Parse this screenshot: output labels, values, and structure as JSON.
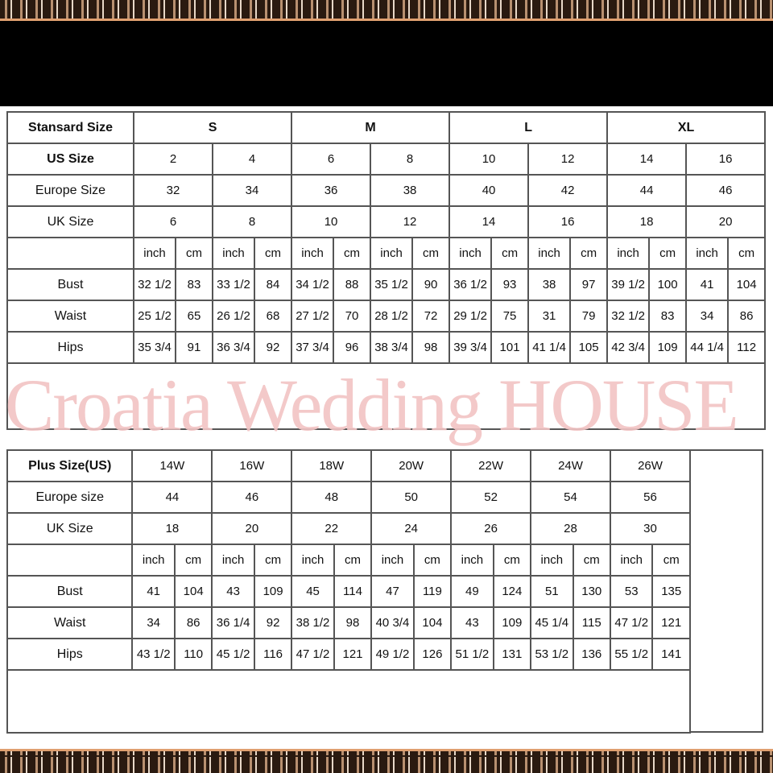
{
  "standard": {
    "header_label": "Stansard Size",
    "groups": [
      "S",
      "M",
      "L",
      "XL"
    ],
    "us_label": "US Size",
    "us": [
      "2",
      "4",
      "6",
      "8",
      "10",
      "12",
      "14",
      "16"
    ],
    "europe_label": "Europe Size",
    "europe": [
      "32",
      "34",
      "36",
      "38",
      "40",
      "42",
      "44",
      "46"
    ],
    "uk_label": "UK Size",
    "uk": [
      "6",
      "8",
      "10",
      "12",
      "14",
      "16",
      "18",
      "20"
    ],
    "unit_inch": "inch",
    "unit_cm": "cm",
    "measurements": [
      {
        "label": "Bust",
        "values": [
          "32 1/2",
          "83",
          "33 1/2",
          "84",
          "34 1/2",
          "88",
          "35 1/2",
          "90",
          "36 1/2",
          "93",
          "38",
          "97",
          "39 1/2",
          "100",
          "41",
          "104"
        ]
      },
      {
        "label": "Waist",
        "values": [
          "25 1/2",
          "65",
          "26 1/2",
          "68",
          "27 1/2",
          "70",
          "28 1/2",
          "72",
          "29 1/2",
          "75",
          "31",
          "79",
          "32 1/2",
          "83",
          "34",
          "86"
        ]
      },
      {
        "label": "Hips",
        "values": [
          "35 3/4",
          "91",
          "36 3/4",
          "92",
          "37 3/4",
          "96",
          "38 3/4",
          "98",
          "39 3/4",
          "101",
          "41 1/4",
          "105",
          "42 3/4",
          "109",
          "44 1/4",
          "112"
        ]
      }
    ]
  },
  "plus": {
    "header_label": "Plus Size(US)",
    "sizes": [
      "14W",
      "16W",
      "18W",
      "20W",
      "22W",
      "24W",
      "26W"
    ],
    "europe_label": "Europe size",
    "europe": [
      "44",
      "46",
      "48",
      "50",
      "52",
      "54",
      "56"
    ],
    "uk_label": "UK Size",
    "uk": [
      "18",
      "20",
      "22",
      "24",
      "26",
      "28",
      "30"
    ],
    "unit_inch": "inch",
    "unit_cm": "cm",
    "measurements": [
      {
        "label": "Bust",
        "values": [
          "41",
          "104",
          "43",
          "109",
          "45",
          "114",
          "47",
          "119",
          "49",
          "124",
          "51",
          "130",
          "53",
          "135"
        ]
      },
      {
        "label": "Waist",
        "values": [
          "34",
          "86",
          "36 1/4",
          "92",
          "38 1/2",
          "98",
          "40 3/4",
          "104",
          "43",
          "109",
          "45 1/4",
          "115",
          "47 1/2",
          "121"
        ]
      },
      {
        "label": "Hips",
        "values": [
          "43 1/2",
          "110",
          "45 1/2",
          "116",
          "47 1/2",
          "121",
          "49 1/2",
          "126",
          "51 1/2",
          "131",
          "53 1/2",
          "136",
          "55 1/2",
          "141"
        ]
      }
    ]
  },
  "watermark": "Croatia Wedding HOUSE",
  "colors": {
    "watermark": "#f2c4c4",
    "border_accent": "#e0a070",
    "grid": "#555555"
  }
}
